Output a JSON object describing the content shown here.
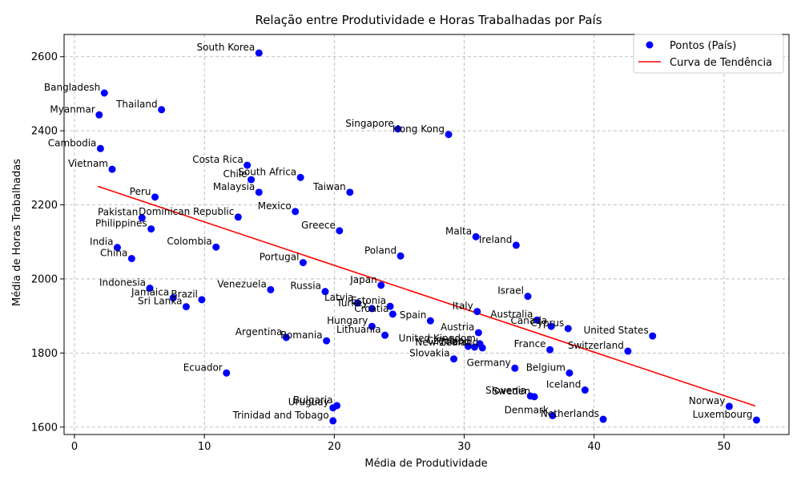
{
  "chart_data": {
    "type": "scatter",
    "title": "Relação entre Produtividade e Horas Trabalhadas por País",
    "xlabel": "Média de Produtividade",
    "ylabel": "Média de Horas Trabalhadas",
    "xlim": [
      -0.8,
      55
    ],
    "ylim": [
      1580,
      2660
    ],
    "xticks": [
      0,
      10,
      20,
      30,
      40,
      50
    ],
    "yticks": [
      1600,
      1800,
      2000,
      2200,
      2400,
      2600
    ],
    "grid": true,
    "legend": {
      "placement": "top-right",
      "points_label": "Pontos (País)",
      "trend_label": "Curva de Tendência"
    },
    "colors": {
      "points": "#0000ff",
      "trend": "#ff0000",
      "grid": "#b0b0b0"
    },
    "trend": {
      "x": [
        1.8,
        52.4
      ],
      "y": [
        2250,
        1657
      ]
    },
    "series": [
      {
        "name": "Pontos (País)",
        "points": [
          {
            "label": "South Korea",
            "x": 14.2,
            "y": 2610
          },
          {
            "label": "Bangladesh",
            "x": 2.3,
            "y": 2502
          },
          {
            "label": "Thailand",
            "x": 6.7,
            "y": 2457
          },
          {
            "label": "Myanmar",
            "x": 1.9,
            "y": 2443
          },
          {
            "label": "Singapore",
            "x": 24.9,
            "y": 2405
          },
          {
            "label": "Hong Kong",
            "x": 28.8,
            "y": 2390
          },
          {
            "label": "Cambodia",
            "x": 2.0,
            "y": 2352
          },
          {
            "label": "Costa Rica",
            "x": 13.3,
            "y": 2307
          },
          {
            "label": "Vietnam",
            "x": 2.9,
            "y": 2296
          },
          {
            "label": "South Africa",
            "x": 17.4,
            "y": 2274
          },
          {
            "label": "Chile",
            "x": 13.6,
            "y": 2268
          },
          {
            "label": "Malaysia",
            "x": 14.2,
            "y": 2234
          },
          {
            "label": "Taiwan",
            "x": 21.2,
            "y": 2234
          },
          {
            "label": "Peru",
            "x": 6.2,
            "y": 2221
          },
          {
            "label": "Mexico",
            "x": 17.0,
            "y": 2182
          },
          {
            "label": "Dominican Republic",
            "x": 12.6,
            "y": 2167
          },
          {
            "label": "Pakistan",
            "x": 5.2,
            "y": 2165
          },
          {
            "label": "Philippines",
            "x": 5.9,
            "y": 2135
          },
          {
            "label": "Greece",
            "x": 20.4,
            "y": 2130
          },
          {
            "label": "Malta",
            "x": 30.9,
            "y": 2114
          },
          {
            "label": "Ireland",
            "x": 34.0,
            "y": 2091
          },
          {
            "label": "India",
            "x": 3.3,
            "y": 2085
          },
          {
            "label": "Colombia",
            "x": 10.9,
            "y": 2086
          },
          {
            "label": "Poland",
            "x": 25.1,
            "y": 2062
          },
          {
            "label": "China",
            "x": 4.4,
            "y": 2055
          },
          {
            "label": "Portugal",
            "x": 17.6,
            "y": 2044
          },
          {
            "label": "Japan",
            "x": 23.6,
            "y": 1983
          },
          {
            "label": "Indonesia",
            "x": 5.8,
            "y": 1975
          },
          {
            "label": "Venezuela",
            "x": 15.1,
            "y": 1971
          },
          {
            "label": "Russia",
            "x": 19.3,
            "y": 1966
          },
          {
            "label": "Israel",
            "x": 34.9,
            "y": 1953
          },
          {
            "label": "Jamaica",
            "x": 7.6,
            "y": 1949
          },
          {
            "label": "Brazil",
            "x": 9.8,
            "y": 1944
          },
          {
            "label": "Latvia",
            "x": 21.8,
            "y": 1935
          },
          {
            "label": "Estonia",
            "x": 24.3,
            "y": 1926
          },
          {
            "label": "Sri Lanka",
            "x": 8.6,
            "y": 1925
          },
          {
            "label": "Turkey",
            "x": 22.9,
            "y": 1920
          },
          {
            "label": "Croatia",
            "x": 24.5,
            "y": 1905
          },
          {
            "label": "Italy",
            "x": 31.0,
            "y": 1912
          },
          {
            "label": "Spain",
            "x": 27.4,
            "y": 1887
          },
          {
            "label": "Australia",
            "x": 35.6,
            "y": 1889
          },
          {
            "label": "Hungary",
            "x": 22.9,
            "y": 1872
          },
          {
            "label": "Canada",
            "x": 36.7,
            "y": 1872
          },
          {
            "label": "Cyprus",
            "x": 38.0,
            "y": 1866
          },
          {
            "label": "Austria",
            "x": 31.1,
            "y": 1855
          },
          {
            "label": "Lithuania",
            "x": 23.9,
            "y": 1848
          },
          {
            "label": "United States",
            "x": 44.5,
            "y": 1846
          },
          {
            "label": "Argentina",
            "x": 16.3,
            "y": 1842
          },
          {
            "label": "Romania",
            "x": 19.4,
            "y": 1833
          },
          {
            "label": "United Kingdom",
            "x": 31.2,
            "y": 1825
          },
          {
            "label": "Finland",
            "x": 30.8,
            "y": 1816
          },
          {
            "label": "Czechia",
            "x": 30.3,
            "y": 1818
          },
          {
            "label": "New Zealand",
            "x": 31.4,
            "y": 1814
          },
          {
            "label": "France",
            "x": 36.6,
            "y": 1809
          },
          {
            "label": "Switzerland",
            "x": 42.6,
            "y": 1805
          },
          {
            "label": "Slovakia",
            "x": 29.2,
            "y": 1784
          },
          {
            "label": "Germany",
            "x": 33.9,
            "y": 1759
          },
          {
            "label": "Belgium",
            "x": 38.1,
            "y": 1746
          },
          {
            "label": "Ecuador",
            "x": 11.7,
            "y": 1746
          },
          {
            "label": "Iceland",
            "x": 39.3,
            "y": 1700
          },
          {
            "label": "Slovenia",
            "x": 35.1,
            "y": 1684
          },
          {
            "label": "Sweden",
            "x": 35.4,
            "y": 1682
          },
          {
            "label": "Bulgaria",
            "x": 20.2,
            "y": 1658
          },
          {
            "label": "Norway",
            "x": 50.4,
            "y": 1656
          },
          {
            "label": "Uruguay",
            "x": 19.9,
            "y": 1652
          },
          {
            "label": "Denmark",
            "x": 36.8,
            "y": 1631
          },
          {
            "label": "Netherlands",
            "x": 40.7,
            "y": 1621
          },
          {
            "label": "Trinidad and Tobago",
            "x": 19.9,
            "y": 1617
          },
          {
            "label": "Luxembourg",
            "x": 52.5,
            "y": 1619
          }
        ]
      }
    ]
  }
}
